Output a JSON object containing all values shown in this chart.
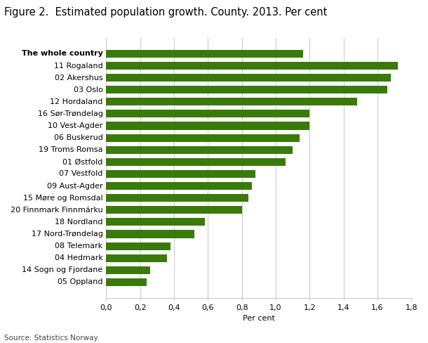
{
  "title": "Figure 2.  Estimated population growth. County. 2013. Per cent",
  "xlabel": "Per cent",
  "source": "Source: Statistics Norway.",
  "bar_color": "#3a7a0a",
  "categories": [
    "The whole country",
    "11 Rogaland",
    "02 Akershus",
    "03 Oslo",
    "12 Hordaland",
    "16 Sør-Trøndelag",
    "10 Vest-Agder",
    "06 Buskerud",
    "19 Troms Romsa",
    "01 Østfold",
    "07 Vestfold",
    "09 Aust-Agder",
    "15 Møre og Romsdal",
    "20 Finnmark Finnmárku",
    "18 Nordland",
    "17 Nord-Trøndelag",
    "08 Telemark",
    "04 Hedmark",
    "14 Sogn og Fjordane",
    "05 Oppland"
  ],
  "values": [
    1.16,
    1.72,
    1.68,
    1.66,
    1.48,
    1.2,
    1.2,
    1.14,
    1.1,
    1.06,
    0.88,
    0.86,
    0.84,
    0.8,
    0.58,
    0.52,
    0.38,
    0.36,
    0.26,
    0.24
  ],
  "bold_label": "The whole country",
  "xlim": [
    0,
    1.8
  ],
  "xticks": [
    0.0,
    0.2,
    0.4,
    0.6,
    0.8,
    1.0,
    1.2,
    1.4,
    1.6,
    1.8
  ],
  "xtick_labels": [
    "0,0",
    "0,2",
    "0,4",
    "0,6",
    "0,8",
    "1,0",
    "1,2",
    "1,4",
    "1,6",
    "1,8"
  ],
  "fig_width": 6.1,
  "fig_height": 4.88,
  "dpi": 100,
  "background_color": "#ffffff",
  "grid_color": "#cccccc",
  "title_fontsize": 10.5,
  "label_fontsize": 8.0,
  "tick_fontsize": 8.0,
  "source_fontsize": 7.5
}
